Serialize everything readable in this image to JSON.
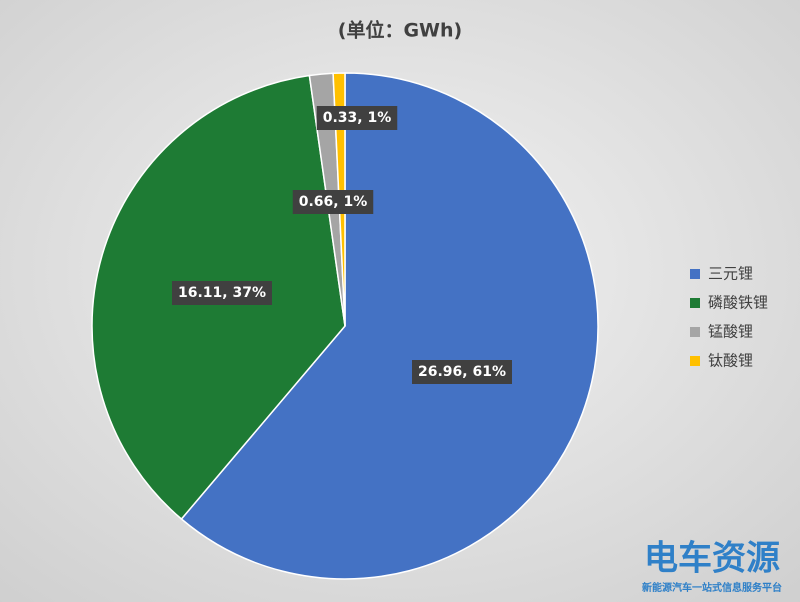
{
  "chart_data": {
    "type": "pie",
    "title": "(单位：GWh)",
    "categories": [
      "三元锂",
      "磷酸铁锂",
      "锰酸锂",
      "钛酸锂"
    ],
    "values": [
      26.96,
      16.11,
      0.66,
      0.33
    ],
    "value_labels": [
      "26.96, 61%",
      "16.11, 37%",
      "0.66, 1%",
      "0.33, 1%"
    ],
    "colors": [
      "#4472c4",
      "#1e7b34",
      "#a5a5a5",
      "#ffc000"
    ],
    "legend": "right"
  },
  "watermark": {
    "brand": "电车资源",
    "slogan": "新能源汽车一站式信息服务平台"
  }
}
